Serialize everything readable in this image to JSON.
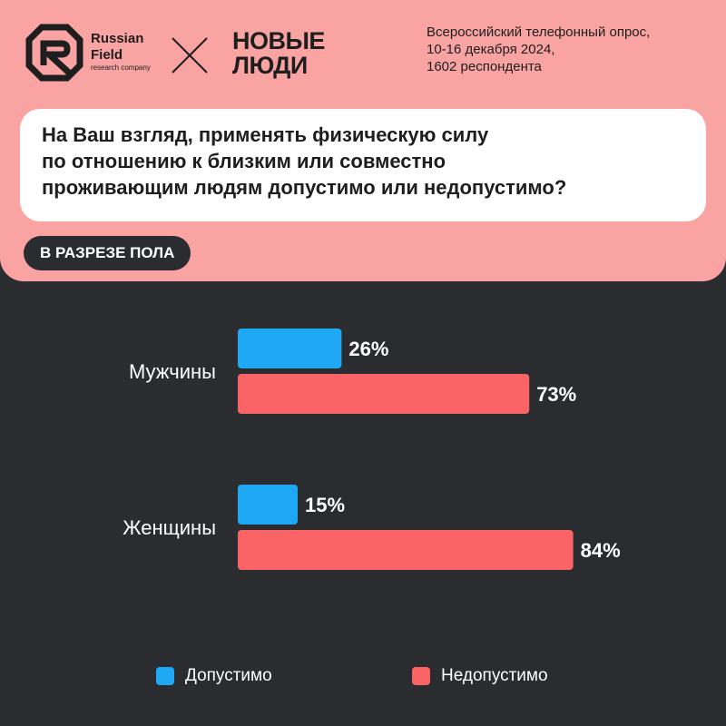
{
  "header": {
    "logo_left": {
      "line1": "Russian",
      "line2": "Field",
      "line3": "research company"
    },
    "logo_right": {
      "line1": "НОВЫЕ",
      "line2": "ЛЮДИ"
    },
    "survey_info": [
      "Всероссийский телефонный опрос,",
      "10-16 декабря 2024,",
      "1602 респондента"
    ]
  },
  "question": {
    "lines": [
      "На Ваш взгляд, применять физическую силу",
      "по отношению к близким или совместно",
      "проживающим людям допустимо или недопустимо?"
    ]
  },
  "badge": {
    "label": "В РАЗРЕЗЕ ПОЛА"
  },
  "colors": {
    "accent_pink": "#f9a3a3",
    "background": "#2b2c30",
    "blue": "#1fa8f3",
    "red": "#fb6466"
  },
  "chart_data": {
    "type": "bar",
    "orientation": "horizontal",
    "categories": [
      "Мужчины",
      "Женщины"
    ],
    "series": [
      {
        "name": "Допустимо",
        "values": [
          26,
          15
        ],
        "color": "#1fa8f3"
      },
      {
        "name": "Недопустимо",
        "values": [
          73,
          84
        ],
        "color": "#fb6466"
      }
    ],
    "value_suffix": "%",
    "xlim": [
      0,
      100
    ],
    "grid": false,
    "legend": "bottom"
  }
}
